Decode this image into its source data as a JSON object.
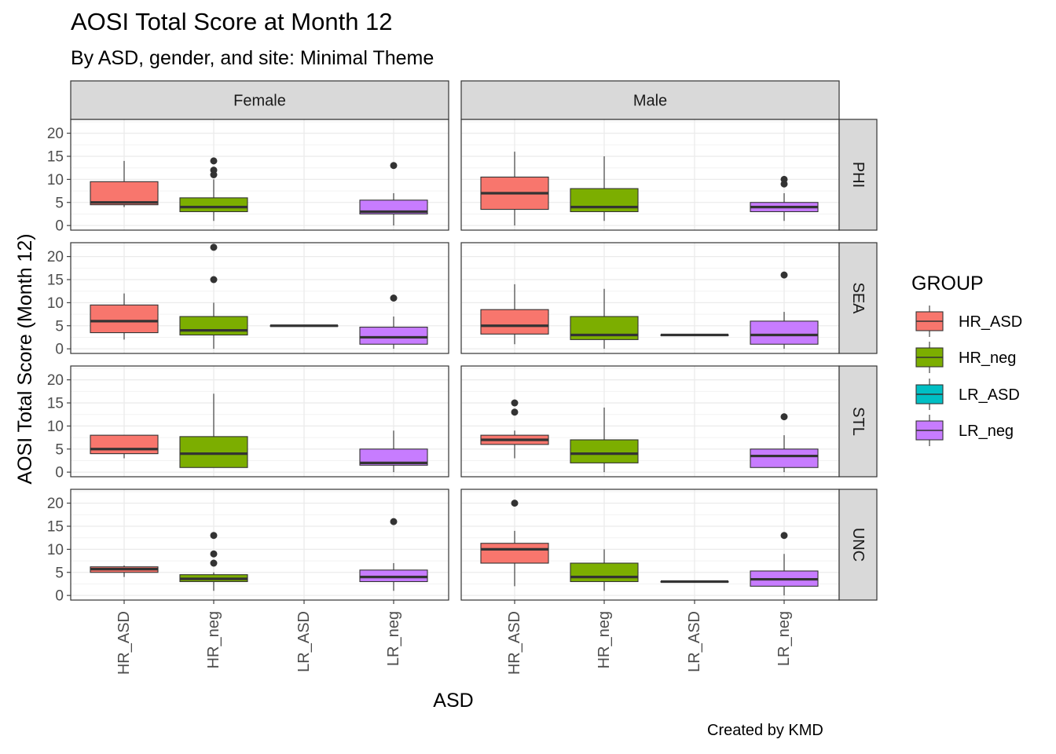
{
  "title": "AOSI Total Score at Month 12",
  "subtitle": "By ASD, gender, and site: Minimal Theme",
  "caption": "Created by KMD",
  "chart_data": {
    "type": "boxplot",
    "title": "AOSI Total Score at Month 12",
    "subtitle": "By ASD, gender, and site: Minimal Theme",
    "xlabel": "ASD",
    "ylabel": "AOSI Total Score (Month 12)",
    "ylim": [
      -1,
      23
    ],
    "yticks": [
      0,
      5,
      10,
      15,
      20
    ],
    "categories": [
      "HR_ASD",
      "HR_neg",
      "LR_ASD",
      "LR_neg"
    ],
    "facet_cols": [
      "Female",
      "Male"
    ],
    "facet_rows": [
      "PHI",
      "SEA",
      "STL",
      "UNC"
    ],
    "legend": {
      "title": "GROUP",
      "position": "right",
      "entries": [
        {
          "label": "HR_ASD",
          "color": "#F8766D"
        },
        {
          "label": "HR_neg",
          "color": "#7CAE00"
        },
        {
          "label": "LR_ASD",
          "color": "#00BFC4"
        },
        {
          "label": "LR_neg",
          "color": "#C77CFF"
        }
      ]
    },
    "panels": [
      {
        "gender": "Female",
        "site": "PHI",
        "boxes": [
          {
            "group": "HR_ASD",
            "min": 4,
            "q1": 4.5,
            "median": 5,
            "q3": 9.5,
            "max": 14,
            "outliers": []
          },
          {
            "group": "HR_neg",
            "min": 1,
            "q1": 3,
            "median": 4,
            "q3": 6,
            "max": 10,
            "outliers": [
              11,
              12,
              14
            ]
          },
          {
            "group": "LR_neg",
            "min": 0,
            "q1": 2.5,
            "median": 3,
            "q3": 5.5,
            "max": 7,
            "outliers": [
              13
            ]
          }
        ]
      },
      {
        "gender": "Male",
        "site": "PHI",
        "boxes": [
          {
            "group": "HR_ASD",
            "min": 0,
            "q1": 3.5,
            "median": 7,
            "q3": 10.5,
            "max": 16,
            "outliers": []
          },
          {
            "group": "HR_neg",
            "min": 1,
            "q1": 3,
            "median": 4,
            "q3": 8,
            "max": 15,
            "outliers": []
          },
          {
            "group": "LR_neg",
            "min": 1,
            "q1": 3,
            "median": 4,
            "q3": 5,
            "max": 7,
            "outliers": [
              9,
              10
            ]
          }
        ]
      },
      {
        "gender": "Female",
        "site": "SEA",
        "boxes": [
          {
            "group": "HR_ASD",
            "min": 2,
            "q1": 3.5,
            "median": 6,
            "q3": 9.5,
            "max": 12,
            "outliers": []
          },
          {
            "group": "HR_neg",
            "min": 0,
            "q1": 3,
            "median": 4,
            "q3": 7,
            "max": 10,
            "outliers": [
              15,
              22
            ]
          },
          {
            "group": "LR_ASD",
            "min": 5,
            "q1": 5,
            "median": 5,
            "q3": 5,
            "max": 5,
            "outliers": []
          },
          {
            "group": "LR_neg",
            "min": 0,
            "q1": 1,
            "median": 2.5,
            "q3": 4.7,
            "max": 7,
            "outliers": [
              11
            ]
          }
        ]
      },
      {
        "gender": "Male",
        "site": "SEA",
        "boxes": [
          {
            "group": "HR_ASD",
            "min": 1,
            "q1": 3.2,
            "median": 5,
            "q3": 8.5,
            "max": 14,
            "outliers": []
          },
          {
            "group": "HR_neg",
            "min": 0,
            "q1": 2,
            "median": 3,
            "q3": 7,
            "max": 13,
            "outliers": []
          },
          {
            "group": "LR_ASD",
            "min": 3,
            "q1": 3,
            "median": 3,
            "q3": 3,
            "max": 3,
            "outliers": []
          },
          {
            "group": "LR_neg",
            "min": 0,
            "q1": 1,
            "median": 3,
            "q3": 6,
            "max": 8,
            "outliers": [
              16
            ]
          }
        ]
      },
      {
        "gender": "Female",
        "site": "STL",
        "boxes": [
          {
            "group": "HR_ASD",
            "min": 3,
            "q1": 4,
            "median": 5,
            "q3": 8,
            "max": 8,
            "outliers": []
          },
          {
            "group": "HR_neg",
            "min": 1,
            "q1": 1,
            "median": 4,
            "q3": 7.7,
            "max": 17,
            "outliers": []
          },
          {
            "group": "LR_neg",
            "min": 0,
            "q1": 1.5,
            "median": 2,
            "q3": 5,
            "max": 9,
            "outliers": []
          }
        ]
      },
      {
        "gender": "Male",
        "site": "STL",
        "boxes": [
          {
            "group": "HR_ASD",
            "min": 3,
            "q1": 6,
            "median": 7,
            "q3": 8,
            "max": 9,
            "outliers": [
              13,
              15
            ]
          },
          {
            "group": "HR_neg",
            "min": 0,
            "q1": 2,
            "median": 4,
            "q3": 7,
            "max": 14,
            "outliers": []
          },
          {
            "group": "LR_neg",
            "min": 0,
            "q1": 1,
            "median": 3.5,
            "q3": 5,
            "max": 8,
            "outliers": [
              12
            ]
          }
        ]
      },
      {
        "gender": "Female",
        "site": "UNC",
        "boxes": [
          {
            "group": "HR_ASD",
            "min": 4,
            "q1": 5,
            "median": 5.7,
            "q3": 6.2,
            "max": 6.5,
            "outliers": []
          },
          {
            "group": "HR_neg",
            "min": 1,
            "q1": 3,
            "median": 3.6,
            "q3": 4.5,
            "max": 5,
            "outliers": [
              7,
              9,
              13
            ]
          },
          {
            "group": "LR_neg",
            "min": 1,
            "q1": 3,
            "median": 4,
            "q3": 5.5,
            "max": 7,
            "outliers": [
              16
            ]
          }
        ]
      },
      {
        "gender": "Male",
        "site": "UNC",
        "boxes": [
          {
            "group": "HR_ASD",
            "min": 2,
            "q1": 7,
            "median": 10,
            "q3": 11.3,
            "max": 14,
            "outliers": [
              20
            ]
          },
          {
            "group": "HR_neg",
            "min": 1,
            "q1": 3,
            "median": 4,
            "q3": 7,
            "max": 10,
            "outliers": []
          },
          {
            "group": "LR_ASD",
            "min": 3,
            "q1": 3,
            "median": 3,
            "q3": 3,
            "max": 3,
            "outliers": []
          },
          {
            "group": "LR_neg",
            "min": 0,
            "q1": 2,
            "median": 3.5,
            "q3": 5.3,
            "max": 9,
            "outliers": [
              13
            ]
          }
        ]
      }
    ]
  }
}
